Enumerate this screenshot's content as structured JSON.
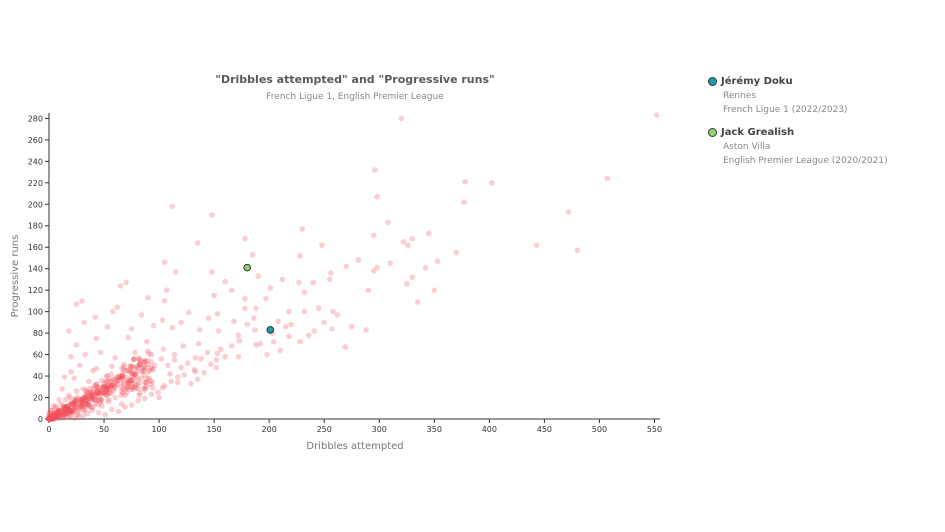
{
  "chart_data": {
    "type": "scatter",
    "title": "\"Dribbles attempted\" and \"Progressive runs\"",
    "subtitle": "French Ligue 1, English Premier League",
    "xlabel": "Dribbles attempted",
    "ylabel": "Progressive runs",
    "xlim": [
      0,
      555
    ],
    "ylim": [
      0,
      285
    ],
    "xticks": [
      0,
      50,
      100,
      150,
      200,
      250,
      300,
      350,
      400,
      450,
      500,
      550
    ],
    "yticks": [
      0,
      20,
      40,
      60,
      80,
      100,
      120,
      140,
      160,
      180,
      200,
      220,
      240,
      260,
      280
    ],
    "background_color": "#f0525f",
    "background_note": "Several hundred additional faint points cluster near the origin (approx. 0–100 dribbles, 0–60 runs)",
    "background_points": [
      [
        320,
        280
      ],
      [
        552,
        283
      ],
      [
        507,
        224
      ],
      [
        378,
        221
      ],
      [
        402,
        220
      ],
      [
        296,
        232
      ],
      [
        472,
        193
      ],
      [
        377,
        202
      ],
      [
        298,
        207
      ],
      [
        112,
        198
      ],
      [
        148,
        190
      ],
      [
        308,
        183
      ],
      [
        345,
        173
      ],
      [
        295,
        171
      ],
      [
        178,
        168
      ],
      [
        230,
        177
      ],
      [
        330,
        168
      ],
      [
        322,
        165
      ],
      [
        326,
        162
      ],
      [
        135,
        164
      ],
      [
        443,
        162
      ],
      [
        370,
        155
      ],
      [
        480,
        157
      ],
      [
        248,
        162
      ],
      [
        185,
        153
      ],
      [
        228,
        152
      ],
      [
        281,
        148
      ],
      [
        310,
        145
      ],
      [
        353,
        147
      ],
      [
        298,
        141
      ],
      [
        105,
        146
      ],
      [
        295,
        138
      ],
      [
        256,
        136
      ],
      [
        270,
        142
      ],
      [
        330,
        132
      ],
      [
        342,
        141
      ],
      [
        115,
        137
      ],
      [
        148,
        137
      ],
      [
        325,
        126
      ],
      [
        160,
        128
      ],
      [
        212,
        130
      ],
      [
        255,
        130
      ],
      [
        190,
        133
      ],
      [
        201,
        122
      ],
      [
        227,
        127
      ],
      [
        350,
        120
      ],
      [
        240,
        127
      ],
      [
        290,
        120
      ],
      [
        232,
        118
      ],
      [
        335,
        109
      ],
      [
        150,
        115
      ],
      [
        65,
        124
      ],
      [
        70,
        127
      ],
      [
        166,
        120
      ],
      [
        107,
        120
      ],
      [
        178,
        112
      ],
      [
        197,
        112
      ],
      [
        105,
        110
      ],
      [
        90,
        113
      ],
      [
        62,
        104
      ],
      [
        30,
        110
      ],
      [
        25,
        107
      ],
      [
        245,
        103
      ],
      [
        258,
        100
      ],
      [
        262,
        97
      ],
      [
        218,
        100
      ],
      [
        178,
        103
      ],
      [
        127,
        99
      ],
      [
        153,
        98
      ],
      [
        188,
        103
      ],
      [
        232,
        100
      ],
      [
        215,
        86
      ],
      [
        208,
        91
      ],
      [
        168,
        91
      ],
      [
        145,
        94
      ],
      [
        120,
        90
      ],
      [
        103,
        92
      ],
      [
        84,
        97
      ],
      [
        58,
        100
      ],
      [
        42,
        95
      ],
      [
        288,
        83
      ],
      [
        275,
        86
      ],
      [
        257,
        84
      ],
      [
        241,
        82
      ],
      [
        218,
        77
      ],
      [
        203,
        80
      ],
      [
        187,
        83
      ],
      [
        154,
        82
      ],
      [
        137,
        83
      ],
      [
        112,
        85
      ],
      [
        95,
        87
      ],
      [
        75,
        84
      ],
      [
        53,
        86
      ],
      [
        32,
        90
      ],
      [
        18,
        82
      ],
      [
        269,
        67
      ],
      [
        228,
        72
      ],
      [
        204,
        72
      ],
      [
        188,
        69
      ],
      [
        173,
        73
      ],
      [
        156,
        65
      ],
      [
        136,
        70
      ],
      [
        122,
        68
      ],
      [
        104,
        65
      ],
      [
        89,
        72
      ],
      [
        72,
        76
      ],
      [
        43,
        75
      ],
      [
        25,
        69
      ],
      [
        172,
        58
      ],
      [
        152,
        55
      ],
      [
        133,
        57
      ],
      [
        114,
        55
      ],
      [
        93,
        60
      ],
      [
        78,
        62
      ],
      [
        60,
        57
      ],
      [
        47,
        62
      ],
      [
        33,
        60
      ],
      [
        20,
        58
      ],
      [
        152,
        48
      ],
      [
        133,
        44
      ],
      [
        110,
        42
      ],
      [
        94,
        47
      ],
      [
        82,
        50
      ],
      [
        71,
        45
      ],
      [
        57,
        49
      ],
      [
        43,
        47
      ],
      [
        28,
        50
      ],
      [
        117,
        34
      ],
      [
        103,
        29
      ],
      [
        88,
        34
      ],
      [
        76,
        30
      ],
      [
        63,
        36
      ],
      [
        50,
        33
      ],
      [
        36,
        35
      ],
      [
        23,
        38
      ],
      [
        100,
        20
      ],
      [
        82,
        22
      ],
      [
        67,
        24
      ],
      [
        52,
        22
      ],
      [
        38,
        25
      ],
      [
        25,
        26
      ],
      [
        12,
        28
      ],
      [
        40,
        45
      ],
      [
        20,
        44
      ],
      [
        14,
        39
      ],
      [
        56,
        37
      ],
      [
        46,
        27
      ],
      [
        31,
        28
      ],
      [
        18,
        22
      ],
      [
        9,
        18
      ],
      [
        6,
        12
      ],
      [
        3,
        8
      ],
      [
        2,
        4
      ],
      [
        0,
        0
      ],
      [
        4,
        0
      ],
      [
        8,
        3
      ],
      [
        12,
        6
      ],
      [
        16,
        10
      ],
      [
        20,
        14
      ],
      [
        24,
        18
      ],
      [
        28,
        12
      ],
      [
        32,
        8
      ],
      [
        36,
        15
      ],
      [
        42,
        18
      ],
      [
        48,
        12
      ],
      [
        54,
        16
      ],
      [
        60,
        20
      ],
      [
        66,
        14
      ],
      [
        10,
        1
      ],
      [
        14,
        4
      ],
      [
        18,
        2
      ],
      [
        22,
        6
      ],
      [
        26,
        4
      ],
      [
        5,
        6
      ],
      [
        7,
        10
      ],
      [
        11,
        14
      ],
      [
        15,
        18
      ],
      [
        19,
        20
      ],
      [
        3,
        3
      ],
      [
        1,
        1
      ],
      [
        2,
        2
      ],
      [
        6,
        5
      ],
      [
        9,
        7
      ],
      [
        13,
        9
      ],
      [
        17,
        11
      ],
      [
        21,
        8
      ],
      [
        25,
        10
      ],
      [
        29,
        16
      ],
      [
        33,
        20
      ],
      [
        37,
        22
      ],
      [
        44,
        30
      ],
      [
        48,
        36
      ],
      [
        53,
        40
      ],
      [
        58,
        28
      ],
      [
        62,
        32
      ],
      [
        67,
        40
      ],
      [
        72,
        36
      ],
      [
        78,
        42
      ],
      [
        84,
        38
      ],
      [
        90,
        44
      ],
      [
        96,
        50
      ],
      [
        102,
        56
      ],
      [
        108,
        50
      ],
      [
        114,
        60
      ],
      [
        120,
        48
      ],
      [
        126,
        52
      ],
      [
        132,
        46
      ],
      [
        138,
        56
      ],
      [
        144,
        62
      ],
      [
        160,
        58
      ],
      [
        166,
        68
      ],
      [
        172,
        78
      ],
      [
        180,
        88
      ],
      [
        186,
        94
      ],
      [
        192,
        70
      ],
      [
        198,
        60
      ],
      [
        210,
        64
      ],
      [
        220,
        88
      ],
      [
        236,
        78
      ],
      [
        250,
        90
      ],
      [
        1,
        5
      ],
      [
        2,
        8
      ],
      [
        4,
        12
      ],
      [
        0,
        3
      ],
      [
        0,
        6
      ],
      [
        3,
        1
      ],
      [
        5,
        2
      ],
      [
        7,
        4
      ],
      [
        9,
        1
      ],
      [
        11,
        3
      ],
      [
        13,
        1
      ],
      [
        15,
        5
      ],
      [
        17,
        7
      ],
      [
        19,
        3
      ],
      [
        23,
        1
      ],
      [
        27,
        2
      ],
      [
        31,
        3
      ],
      [
        35,
        5
      ],
      [
        39,
        8
      ],
      [
        45,
        6
      ],
      [
        51,
        4
      ],
      [
        57,
        9
      ],
      [
        63,
        7
      ],
      [
        69,
        11
      ],
      [
        75,
        13
      ],
      [
        81,
        17
      ],
      [
        87,
        19
      ],
      [
        93,
        23
      ],
      [
        99,
        25
      ],
      [
        105,
        31
      ],
      [
        111,
        35
      ],
      [
        117,
        39
      ],
      [
        123,
        41
      ],
      [
        129,
        33
      ],
      [
        135,
        37
      ],
      [
        141,
        43
      ],
      [
        147,
        51
      ],
      [
        153,
        61
      ]
    ],
    "highlighted": [
      {
        "name": "Jérémy Doku",
        "x": 201,
        "y": 83,
        "color": "#1a9eb5"
      },
      {
        "name": "Jack Grealish",
        "x": 180,
        "y": 141,
        "color": "#8fd66d"
      }
    ]
  },
  "legend": [
    {
      "name": "Jérémy Doku",
      "club": "Rennes",
      "league": "French Ligue 1 (2022/2023)",
      "color": "#1a9eb5"
    },
    {
      "name": "Jack Grealish",
      "club": "Aston Villa",
      "league": "English Premier League (2020/2021)",
      "color": "#8fd66d"
    }
  ]
}
